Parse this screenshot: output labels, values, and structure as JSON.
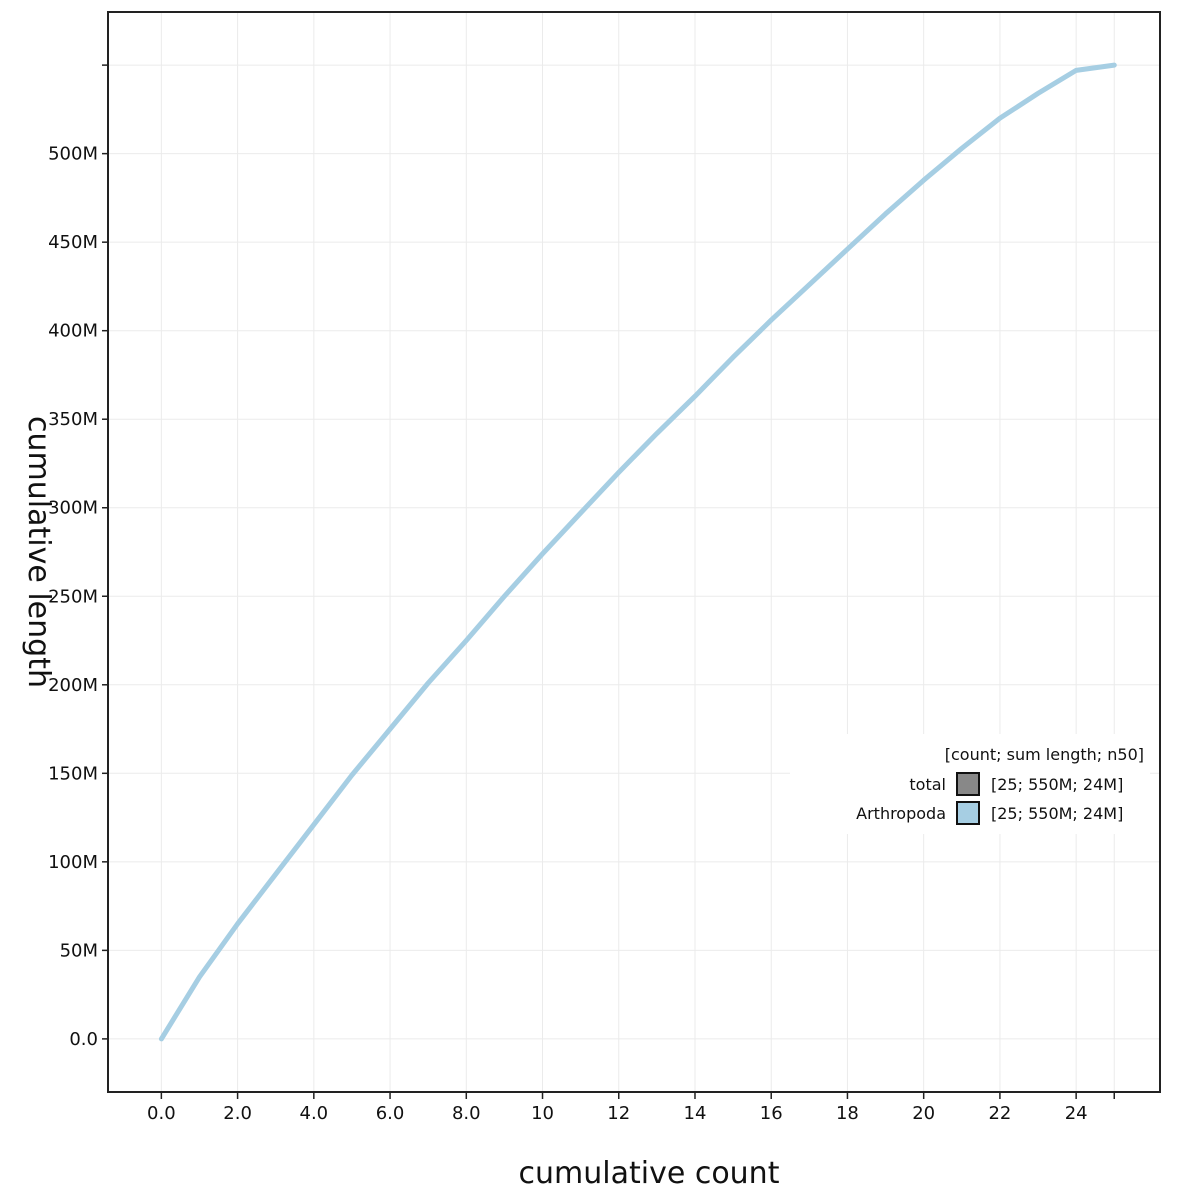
{
  "chart_data": {
    "type": "line",
    "xlabel": "cumulative count",
    "ylabel": "cumulative length",
    "xlim": [
      -1.4,
      26.2
    ],
    "ylim": [
      -30000000,
      580000000
    ],
    "x_ticks": [
      0,
      2,
      4,
      6,
      8,
      10,
      12,
      14,
      16,
      18,
      20,
      22,
      24
    ],
    "x_tick_labels": [
      "0.0",
      "2.0",
      "4.0",
      "6.0",
      "8.0",
      "10",
      "12",
      "14",
      "16",
      "18",
      "20",
      "22",
      "24"
    ],
    "x_extra_ticks": [
      25
    ],
    "y_ticks": [
      0,
      50000000,
      100000000,
      150000000,
      200000000,
      250000000,
      300000000,
      350000000,
      400000000,
      450000000,
      500000000
    ],
    "y_tick_labels": [
      "0.0",
      "50M",
      "100M",
      "150M",
      "200M",
      "250M",
      "300M",
      "350M",
      "400M",
      "450M",
      "500M"
    ],
    "y_extra_ticks": [
      550000000
    ],
    "grid": true,
    "series": [
      {
        "name": "Arthropoda",
        "color": "#a6cee3",
        "x": [
          0,
          1,
          2,
          3,
          4,
          5,
          6,
          7,
          8,
          9,
          10,
          11,
          12,
          13,
          14,
          15,
          16,
          17,
          18,
          19,
          20,
          21,
          22,
          23,
          24,
          25
        ],
        "values": [
          0,
          35000000,
          65000000,
          93000000,
          121000000,
          149000000,
          175000000,
          201000000,
          225000000,
          250000000,
          274000000,
          297000000,
          320000000,
          342000000,
          363000000,
          385000000,
          406000000,
          426000000,
          446000000,
          466000000,
          485000000,
          503000000,
          520000000,
          534000000,
          547000000,
          550000000
        ]
      }
    ],
    "legend": {
      "position": "right",
      "title": "[count; sum length; n50]",
      "entries": [
        {
          "name": "total",
          "color": "#888888",
          "label": "[25; 550M; 24M]"
        },
        {
          "name": "Arthropoda",
          "color": "#a6cee3",
          "label": "[25; 550M; 24M]"
        }
      ]
    }
  }
}
